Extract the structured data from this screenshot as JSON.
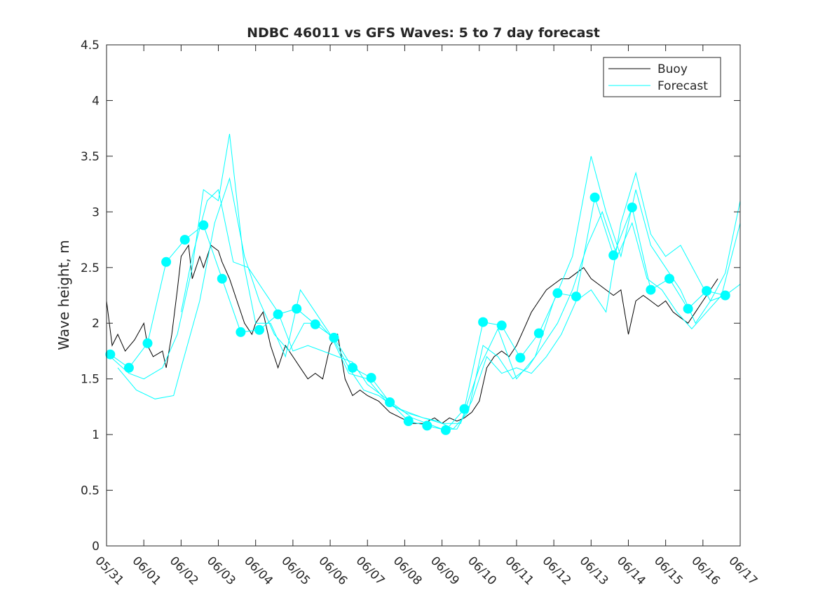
{
  "chart_data": {
    "type": "line",
    "title": "NDBC 46011 vs GFS Waves: 5 to 7 day forecast",
    "xlabel": "",
    "ylabel": "Wave height, m",
    "xlim": [
      0,
      17
    ],
    "ylim": [
      0,
      4.5
    ],
    "x_units": "days since 05/31",
    "x_tick_labels": [
      "05/31",
      "06/01",
      "06/02",
      "06/03",
      "06/04",
      "06/05",
      "06/06",
      "06/07",
      "06/08",
      "06/09",
      "06/10",
      "06/11",
      "06/12",
      "06/13",
      "06/14",
      "06/15",
      "06/16",
      "06/17"
    ],
    "y_ticks": [
      0,
      0.5,
      1,
      1.5,
      2,
      2.5,
      3,
      3.5,
      4,
      4.5
    ],
    "y_tick_labels": [
      "0",
      "0.5",
      "1",
      "1.5",
      "2",
      "2.5",
      "3",
      "3.5",
      "4",
      "4.5"
    ],
    "grid": false,
    "legend": {
      "placement": "top-right",
      "entries": [
        {
          "name": "Buoy",
          "color": "#000000"
        },
        {
          "name": "Forecast",
          "color": "#00FFFF"
        }
      ]
    },
    "series": [
      {
        "name": "Buoy",
        "color": "#000000",
        "x": [
          0,
          0.15,
          0.3,
          0.5,
          0.75,
          1.0,
          1.1,
          1.25,
          1.5,
          1.6,
          1.75,
          1.9,
          2.0,
          2.2,
          2.3,
          2.5,
          2.6,
          2.8,
          3.0,
          3.1,
          3.3,
          3.5,
          3.7,
          3.9,
          4.0,
          4.2,
          4.4,
          4.6,
          4.8,
          5.0,
          5.2,
          5.4,
          5.6,
          5.8,
          6.0,
          6.2,
          6.4,
          6.6,
          6.8,
          7.0,
          7.3,
          7.6,
          7.9,
          8.2,
          8.5,
          8.8,
          9.0,
          9.2,
          9.4,
          9.6,
          9.8,
          10.0,
          10.2,
          10.4,
          10.6,
          10.8,
          11.0,
          11.2,
          11.4,
          11.6,
          11.8,
          12.0,
          12.2,
          12.4,
          12.6,
          12.8,
          13.0,
          13.2,
          13.4,
          13.6,
          13.8,
          14.0,
          14.2,
          14.4,
          14.6,
          14.8,
          15.0,
          15.2,
          15.4,
          15.6,
          15.8,
          16.0,
          16.2,
          16.4
        ],
        "y": [
          2.2,
          1.8,
          1.9,
          1.75,
          1.85,
          2.0,
          1.8,
          1.7,
          1.75,
          1.6,
          1.9,
          2.3,
          2.6,
          2.7,
          2.4,
          2.6,
          2.5,
          2.7,
          2.65,
          2.55,
          2.4,
          2.2,
          2.0,
          1.9,
          2.0,
          2.1,
          1.8,
          1.6,
          1.8,
          1.7,
          1.6,
          1.5,
          1.55,
          1.5,
          1.8,
          1.9,
          1.5,
          1.35,
          1.4,
          1.35,
          1.3,
          1.2,
          1.15,
          1.1,
          1.1,
          1.15,
          1.1,
          1.15,
          1.12,
          1.15,
          1.2,
          1.3,
          1.6,
          1.7,
          1.75,
          1.7,
          1.8,
          1.95,
          2.1,
          2.2,
          2.3,
          2.35,
          2.4,
          2.4,
          2.45,
          2.5,
          2.4,
          2.35,
          2.3,
          2.25,
          2.3,
          1.9,
          2.2,
          2.25,
          2.2,
          2.15,
          2.2,
          2.1,
          2.05,
          2.0,
          2.1,
          2.2,
          2.3,
          2.4
        ]
      },
      {
        "name": "",
        "color": "#00FFFF",
        "x": [
          0.1,
          0.6,
          1.1,
          1.6,
          2.1,
          2.6,
          3.1,
          3.6,
          4.1,
          4.6,
          5.1,
          5.6,
          6.1,
          6.6,
          7.1,
          7.6,
          8.1,
          8.6,
          9.1,
          9.6,
          10.1,
          10.6,
          11.1,
          11.6,
          12.1,
          12.6,
          13.1,
          13.6,
          14.1,
          14.6,
          15.1,
          15.6,
          16.1,
          16.6
        ],
        "y": [
          1.72,
          1.6,
          1.82,
          2.55,
          2.75,
          2.88,
          2.4,
          1.92,
          1.94,
          2.08,
          2.13,
          1.99,
          1.87,
          1.6,
          1.51,
          1.29,
          1.12,
          1.08,
          1.04,
          1.23,
          2.01,
          1.98,
          1.69,
          1.91,
          2.27,
          2.24,
          3.13,
          2.61,
          3.04,
          2.3,
          2.4,
          2.13,
          2.29,
          2.25
        ]
      },
      {
        "name": "",
        "color": "#00FFFF",
        "x": [
          0.1,
          0.6,
          1.0,
          1.5,
          1.9,
          2.3,
          2.6,
          3.0,
          3.3,
          3.7,
          4.0,
          4.4,
          4.8,
          5.2,
          5.6,
          6.0,
          6.5,
          7.0,
          7.5,
          8.0,
          8.5,
          9.0,
          9.5,
          10.0,
          10.5,
          11.0,
          11.5,
          12.0,
          12.5,
          13.0,
          13.4,
          13.8,
          14.2,
          14.6,
          15.0,
          15.4,
          15.8,
          16.2,
          16.6,
          17.0
        ],
        "y": [
          1.7,
          1.55,
          1.5,
          1.6,
          1.9,
          2.5,
          3.2,
          3.1,
          3.7,
          2.5,
          2.0,
          2.0,
          1.7,
          2.3,
          2.1,
          1.9,
          1.55,
          1.5,
          1.3,
          1.2,
          1.15,
          1.1,
          1.1,
          1.6,
          1.95,
          1.5,
          1.7,
          2.2,
          2.6,
          3.5,
          3.0,
          2.6,
          3.2,
          2.7,
          2.5,
          2.3,
          2.0,
          2.2,
          2.25,
          2.35
        ]
      },
      {
        "name": "",
        "color": "#00FFFF",
        "x": [
          0.3,
          0.8,
          1.3,
          1.8,
          2.0,
          2.5,
          2.9,
          3.3,
          3.7,
          4.1,
          4.5,
          4.9,
          5.3,
          5.7,
          6.1,
          6.5,
          6.9,
          7.3,
          7.7,
          8.1,
          8.5,
          8.9,
          9.3,
          9.7,
          10.1,
          10.5,
          10.9,
          11.3,
          11.7,
          12.1,
          12.5,
          12.9,
          13.3,
          13.7,
          14.1,
          14.5,
          14.9,
          15.3,
          15.7,
          16.1,
          16.5,
          17.0
        ],
        "y": [
          1.6,
          1.4,
          1.32,
          1.35,
          1.6,
          2.2,
          2.9,
          3.3,
          2.6,
          2.2,
          1.9,
          1.75,
          2.0,
          2.0,
          1.85,
          1.6,
          1.4,
          1.35,
          1.25,
          1.2,
          1.15,
          1.12,
          1.05,
          1.2,
          1.8,
          1.7,
          1.5,
          1.6,
          1.8,
          2.0,
          2.3,
          2.7,
          3.0,
          2.6,
          2.9,
          2.4,
          2.3,
          2.1,
          1.95,
          2.1,
          2.25,
          2.9
        ]
      },
      {
        "name": "",
        "color": "#00FFFF",
        "x": [
          2.0,
          2.3,
          2.7,
          3.0,
          3.4,
          3.8,
          4.2,
          4.6,
          5.0,
          5.4,
          5.8,
          6.2,
          6.6,
          7.0,
          7.4,
          7.8,
          8.2,
          8.6,
          9.0,
          9.4,
          9.8,
          10.2,
          10.6,
          11.0,
          11.4,
          11.8,
          12.2,
          12.6,
          13.0,
          13.4,
          13.8,
          14.2,
          14.6,
          15.0,
          15.4,
          15.8,
          16.2,
          16.6,
          17.0
        ],
        "y": [
          2.1,
          2.6,
          3.1,
          3.2,
          2.55,
          2.5,
          2.3,
          2.1,
          1.75,
          1.8,
          1.75,
          1.7,
          1.65,
          1.45,
          1.35,
          1.25,
          1.15,
          1.1,
          1.05,
          1.05,
          1.3,
          1.7,
          1.55,
          1.6,
          1.55,
          1.7,
          1.9,
          2.2,
          2.3,
          2.1,
          2.9,
          3.35,
          2.8,
          2.6,
          2.7,
          2.45,
          2.2,
          2.45,
          3.1
        ]
      }
    ],
    "markers": {
      "name": "Forecast",
      "color": "#00FFFF",
      "x": [
        0.1,
        0.6,
        1.1,
        1.6,
        2.1,
        2.6,
        3.1,
        3.6,
        4.1,
        4.6,
        5.1,
        5.6,
        6.1,
        6.6,
        7.1,
        7.6,
        8.1,
        8.6,
        9.1,
        9.6,
        10.1,
        10.6,
        11.1,
        11.6,
        12.1,
        12.6,
        13.1,
        13.6,
        14.1,
        14.6,
        15.1,
        15.6,
        16.1,
        16.6
      ],
      "y": [
        1.72,
        1.6,
        1.82,
        2.55,
        2.75,
        2.88,
        2.4,
        1.92,
        1.94,
        2.08,
        2.13,
        1.99,
        1.87,
        1.6,
        1.51,
        1.29,
        1.12,
        1.08,
        1.04,
        1.23,
        2.01,
        1.98,
        1.69,
        1.91,
        2.27,
        2.24,
        3.13,
        2.61,
        3.04,
        2.3,
        2.4,
        2.13,
        2.29,
        2.25
      ]
    }
  }
}
